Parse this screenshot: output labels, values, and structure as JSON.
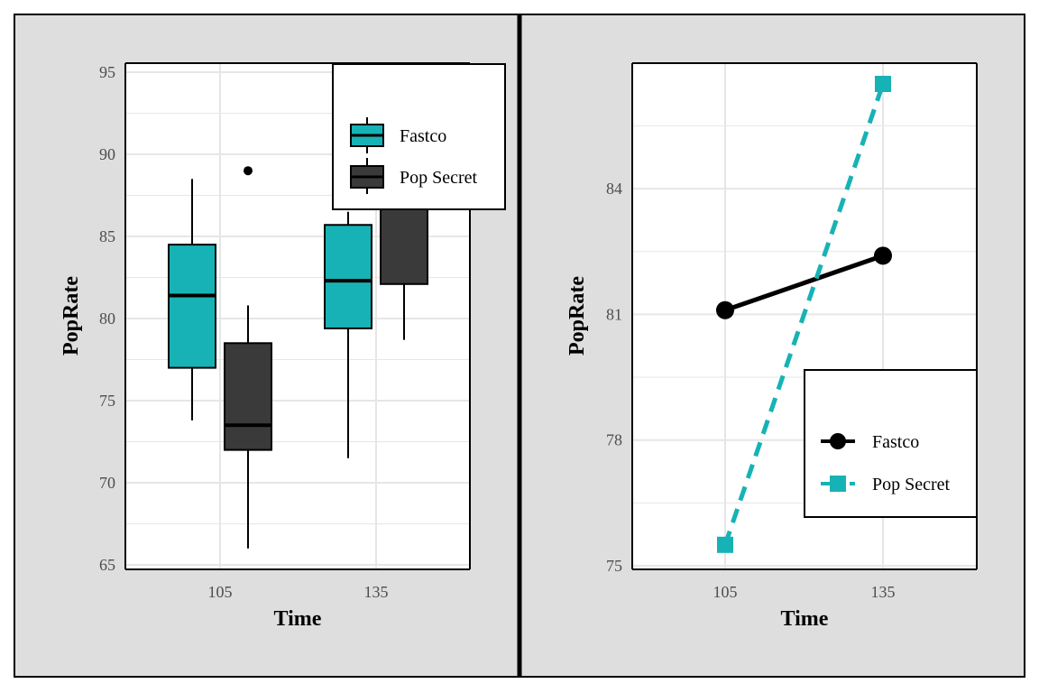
{
  "colors": {
    "fastco": "#17b2b5",
    "pop_secret": "#3a3a3a",
    "panel_bg": "#dedede",
    "plot_bg": "#ffffff",
    "grid": "#e6e6e6"
  },
  "chart_data": [
    {
      "type": "box",
      "xlabel": "Time",
      "ylabel": "PopRate",
      "categories": [
        "105",
        "135"
      ],
      "ylim": [
        65,
        95
      ],
      "yticks": [
        65,
        70,
        75,
        80,
        85,
        90,
        95
      ],
      "grid": true,
      "legend": {
        "position": "top-right",
        "entries": [
          "Fastco",
          "Pop Secret"
        ]
      },
      "series": [
        {
          "name": "Fastco",
          "boxes": [
            {
              "x": "105",
              "whisker_low": 73.8,
              "q1": 77.0,
              "median": 81.4,
              "q3": 84.5,
              "whisker_high": 88.5,
              "outliers": []
            },
            {
              "x": "135",
              "whisker_low": 71.5,
              "q1": 79.4,
              "median": 82.3,
              "q3": 85.7,
              "whisker_high": 86.5,
              "outliers": []
            }
          ]
        },
        {
          "name": "Pop Secret",
          "boxes": [
            {
              "x": "105",
              "whisker_low": 66.0,
              "q1": 72.0,
              "median": 73.5,
              "q3": 78.5,
              "whisker_high": 80.8,
              "outliers": [
                89.0
              ]
            },
            {
              "x": "135",
              "whisker_low": 78.7,
              "q1": 82.1,
              "median": 87.0,
              "q3": 95.5,
              "whisker_high": 95.5,
              "outliers": []
            }
          ]
        }
      ]
    },
    {
      "type": "line",
      "xlabel": "Time",
      "ylabel": "PopRate",
      "x": [
        "105",
        "135"
      ],
      "ylim": [
        75,
        86.5
      ],
      "yticks": [
        75,
        78,
        81,
        84
      ],
      "grid": true,
      "legend": {
        "position": "bottom-right",
        "entries": [
          "Fastco",
          "Pop Secret"
        ]
      },
      "series": [
        {
          "name": "Fastco",
          "values": [
            81.1,
            82.4
          ],
          "marker": "circle",
          "line": "solid"
        },
        {
          "name": "Pop Secret",
          "values": [
            75.5,
            86.5
          ],
          "marker": "square",
          "line": "dashed"
        }
      ]
    }
  ]
}
